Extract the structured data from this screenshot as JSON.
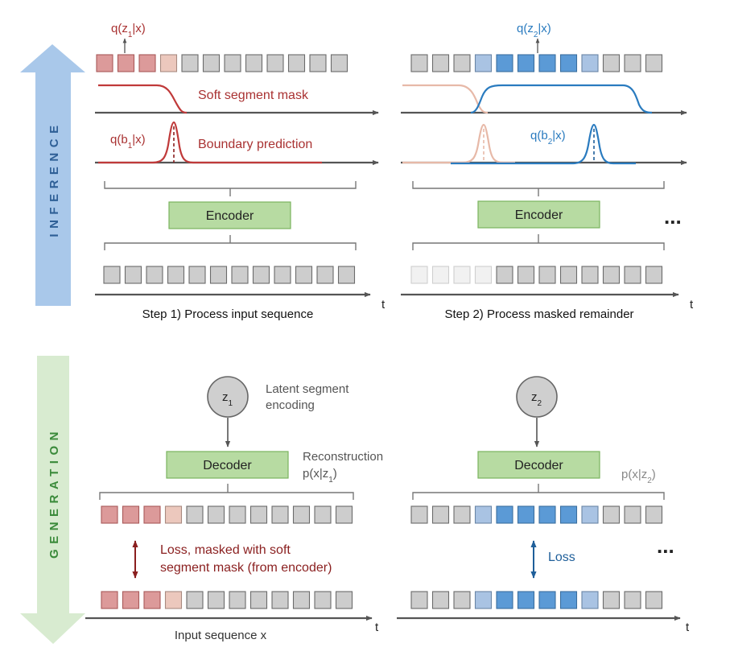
{
  "sidebar": {
    "inference_label": "INFERENCE",
    "generation_label": "GENERATION"
  },
  "colors": {
    "red": "#a93232",
    "red_fill": "#dc9a9a",
    "red_light": "#ecc8bd",
    "blue": "#2a7bbf",
    "blue_fill": "#5b9ad6",
    "blue_light": "#a9c3e3",
    "gray_fill": "#cdcdcd",
    "gray_stroke": "#6b6b6b",
    "green_fill": "#b7dba2",
    "green_stroke": "#7ab35e",
    "inference_arrow": "#a9c8ea",
    "generation_arrow": "#d8ebd0"
  },
  "inference": {
    "step1": {
      "posterior_label": "q(z",
      "posterior_sub": "1",
      "posterior_tail": "|x)",
      "mask_label": "Soft segment mask",
      "boundary_label_prefix": "q(b",
      "boundary_label_sub": "1",
      "boundary_label_tail": "|x)",
      "boundary_caption": "Boundary prediction",
      "encoder_label": "Encoder",
      "caption": "Step 1) Process input sequence",
      "top_cells": [
        "red",
        "red",
        "red",
        "red_light",
        "gray",
        "gray",
        "gray",
        "gray",
        "gray",
        "gray",
        "gray",
        "gray"
      ],
      "bottom_cells": [
        "gray",
        "gray",
        "gray",
        "gray",
        "gray",
        "gray",
        "gray",
        "gray",
        "gray",
        "gray",
        "gray",
        "gray"
      ]
    },
    "step2": {
      "posterior_label": "q(z",
      "posterior_sub": "2",
      "posterior_tail": "|x)",
      "boundary_label_prefix": "q(b",
      "boundary_label_sub": "2",
      "boundary_label_tail": "|x)",
      "encoder_label": "Encoder",
      "caption": "Step 2) Process masked remainder",
      "top_cells": [
        "gray",
        "gray",
        "gray",
        "blue_light",
        "blue",
        "blue",
        "blue",
        "blue",
        "blue_light",
        "gray",
        "gray",
        "gray"
      ],
      "bottom_cells": [
        "faded",
        "faded",
        "faded",
        "faded",
        "gray",
        "gray",
        "gray",
        "gray",
        "gray",
        "gray",
        "gray",
        "gray"
      ]
    },
    "ellipsis": "...",
    "time_label": "t"
  },
  "generation": {
    "latent1": {
      "label": "z",
      "sub": "1",
      "caption_line1": "Latent segment",
      "caption_line2": "encoding"
    },
    "latent2": {
      "label": "z",
      "sub": "2"
    },
    "decoder_label": "Decoder",
    "reconstruction_line1": "Reconstruction",
    "reconstruction_line2_prefix": "p(x|z",
    "reconstruction_line2_sub": "1",
    "reconstruction_line2_tail": ")",
    "reconstruction2_prefix": "p(x|z",
    "reconstruction2_sub": "2",
    "reconstruction2_tail": ")",
    "loss1_line1": "Loss, masked with soft",
    "loss1_line2": "segment mask (from encoder)",
    "loss2": "Loss",
    "input_caption": "Input sequence x",
    "left_top_cells": [
      "red",
      "red",
      "red",
      "red_light",
      "gray",
      "gray",
      "gray",
      "gray",
      "gray",
      "gray",
      "gray",
      "gray"
    ],
    "left_bottom_cells": [
      "red",
      "red",
      "red",
      "red_light",
      "gray",
      "gray",
      "gray",
      "gray",
      "gray",
      "gray",
      "gray",
      "gray"
    ],
    "right_top_cells": [
      "gray",
      "gray",
      "gray",
      "blue_light",
      "blue",
      "blue",
      "blue",
      "blue",
      "blue_light",
      "gray",
      "gray",
      "gray"
    ],
    "right_bottom_cells": [
      "gray",
      "gray",
      "gray",
      "blue_light",
      "blue",
      "blue",
      "blue",
      "blue",
      "blue_light",
      "gray",
      "gray",
      "gray"
    ],
    "ellipsis": "...",
    "time_label": "t"
  }
}
